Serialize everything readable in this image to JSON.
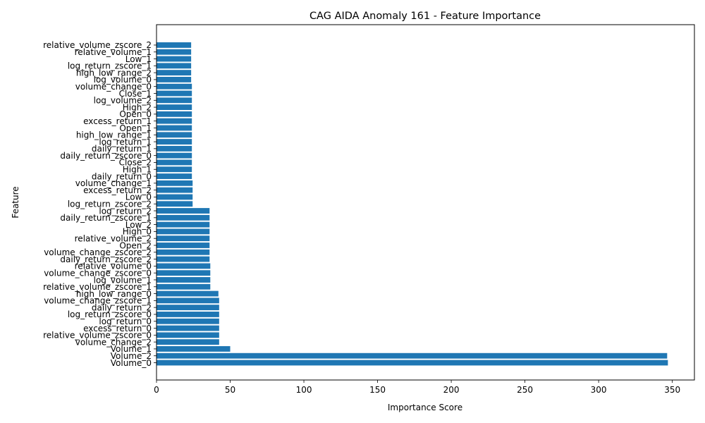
{
  "chart_data": {
    "type": "bar",
    "orientation": "horizontal",
    "title": "CAG AIDA Anomaly 161 - Feature Importance",
    "xlabel": "Importance Score",
    "ylabel": "Feature",
    "xlim": [
      0,
      365
    ],
    "xticks": [
      0,
      50,
      100,
      150,
      200,
      250,
      300,
      350
    ],
    "grid": false,
    "bar_color": "#1f77b4",
    "categories": [
      "Volume_0",
      "Volume_2",
      "Volume_1",
      "volume_change_2",
      "relative_volume_zscore_0",
      "excess_return_0",
      "log_return_0",
      "log_return_zscore_0",
      "daily_return_2",
      "volume_change_zscore_1",
      "high_low_range_0",
      "relative_volume_zscore_1",
      "log_volume_1",
      "volume_change_zscore_0",
      "relative_volume_0",
      "daily_return_zscore_2",
      "volume_change_zscore_2",
      "Open_2",
      "relative_volume_2",
      "High_0",
      "Low_2",
      "daily_return_zscore_1",
      "log_return_2",
      "log_return_zscore_2",
      "Low_0",
      "excess_return_2",
      "volume_change_1",
      "daily_return_0",
      "High_1",
      "Close_2",
      "daily_return_zscore_0",
      "daily_return_1",
      "log_return_1",
      "high_low_range_1",
      "Open_1",
      "excess_return_1",
      "Open_0",
      "High_2",
      "log_volume_2",
      "Close_1",
      "volume_change_0",
      "log_volume_0",
      "high_low_range_2",
      "log_return_zscore_1",
      "Low_1",
      "relative_volume_1",
      "relative_volume_zscore_2"
    ],
    "values": [
      347,
      346.5,
      50,
      42.5,
      42.5,
      42.5,
      42.5,
      42.5,
      42.5,
      42.5,
      42,
      36.5,
      36.5,
      36.5,
      36.5,
      36,
      36,
      36,
      36,
      36,
      36,
      36,
      36,
      24.5,
      24.5,
      24.5,
      24.5,
      24,
      24,
      24,
      24,
      24,
      24,
      24,
      24,
      24,
      24,
      24,
      24,
      24,
      24,
      23.5,
      23.5,
      23.5,
      23.5,
      23.5,
      23.5
    ]
  }
}
